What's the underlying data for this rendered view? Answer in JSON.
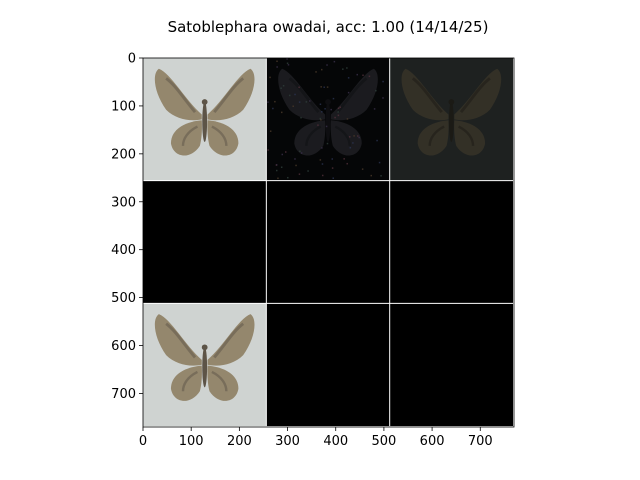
{
  "chart_data": {
    "type": "image-grid",
    "title": "Satoblephara owadai, acc: 1.00 (14/14/25)",
    "xlim": [
      0,
      770
    ],
    "ylim": [
      770,
      0
    ],
    "xticks": [
      "0",
      "100",
      "200",
      "300",
      "400",
      "500",
      "600",
      "700"
    ],
    "yticks": [
      "0",
      "100",
      "200",
      "300",
      "400",
      "500",
      "600",
      "700"
    ],
    "xtick_values": [
      0,
      100,
      200,
      300,
      400,
      500,
      600,
      700
    ],
    "ytick_values": [
      0,
      100,
      200,
      300,
      400,
      500,
      600,
      700
    ],
    "grid": {
      "rows": 3,
      "cols": 3,
      "cell_size": 256,
      "separator_color": "#ffffff"
    },
    "tiles": [
      {
        "row": 0,
        "col": 0,
        "content": "moth",
        "background": "#cfd3d1",
        "wing": "#8a7a5c",
        "body": "#4a3e30"
      },
      {
        "row": 0,
        "col": 1,
        "content": "moth-noise",
        "background": "#050607",
        "wing": "#2a2a30",
        "body": "#141418"
      },
      {
        "row": 0,
        "col": 2,
        "content": "moth-faint",
        "background": "#1e2120",
        "wing": "#3a3528",
        "body": "#1a1812"
      },
      {
        "row": 1,
        "col": 0,
        "content": "empty",
        "background": "#000000"
      },
      {
        "row": 1,
        "col": 1,
        "content": "empty",
        "background": "#000000"
      },
      {
        "row": 1,
        "col": 2,
        "content": "empty",
        "background": "#000000"
      },
      {
        "row": 2,
        "col": 0,
        "content": "moth",
        "background": "#cfd3d1",
        "wing": "#8a7a5c",
        "body": "#4a3e30"
      },
      {
        "row": 2,
        "col": 1,
        "content": "empty",
        "background": "#000000"
      },
      {
        "row": 2,
        "col": 2,
        "content": "empty",
        "background": "#000000"
      }
    ]
  }
}
